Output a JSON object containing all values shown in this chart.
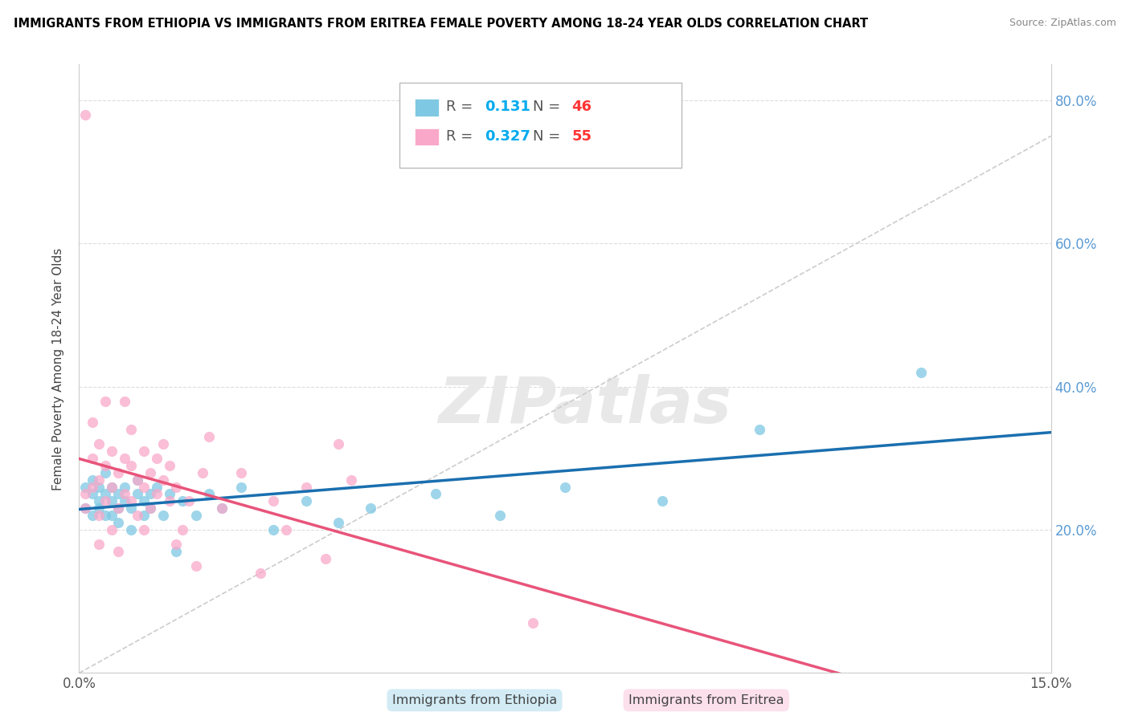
{
  "title": "IMMIGRANTS FROM ETHIOPIA VS IMMIGRANTS FROM ERITREA FEMALE POVERTY AMONG 18-24 YEAR OLDS CORRELATION CHART",
  "source": "Source: ZipAtlas.com",
  "ylabel": "Female Poverty Among 18-24 Year Olds",
  "xlim": [
    0.0,
    0.15
  ],
  "ylim": [
    0.0,
    0.85
  ],
  "ytick_values": [
    0.2,
    0.4,
    0.6,
    0.8
  ],
  "ytick_labels": [
    "20.0%",
    "40.0%",
    "60.0%",
    "80.0%"
  ],
  "R_ethiopia": 0.131,
  "N_ethiopia": 46,
  "R_eritrea": 0.327,
  "N_eritrea": 55,
  "color_ethiopia": "#7ec8e3",
  "color_eritrea": "#f9a8c9",
  "color_ethiopia_line": "#1a6faf",
  "color_eritrea_line": "#e8547a",
  "color_diag": "#cccccc",
  "watermark": "ZIPatlas",
  "ethiopia_x": [
    0.001,
    0.001,
    0.002,
    0.002,
    0.002,
    0.003,
    0.003,
    0.003,
    0.004,
    0.004,
    0.004,
    0.005,
    0.005,
    0.005,
    0.006,
    0.006,
    0.006,
    0.007,
    0.007,
    0.008,
    0.008,
    0.009,
    0.009,
    0.01,
    0.01,
    0.011,
    0.011,
    0.012,
    0.013,
    0.014,
    0.015,
    0.016,
    0.018,
    0.02,
    0.022,
    0.025,
    0.03,
    0.035,
    0.04,
    0.045,
    0.055,
    0.065,
    0.075,
    0.09,
    0.105,
    0.13
  ],
  "ethiopia_y": [
    0.26,
    0.23,
    0.25,
    0.22,
    0.27,
    0.24,
    0.23,
    0.26,
    0.22,
    0.25,
    0.28,
    0.24,
    0.22,
    0.26,
    0.23,
    0.25,
    0.21,
    0.24,
    0.26,
    0.23,
    0.2,
    0.25,
    0.27,
    0.24,
    0.22,
    0.25,
    0.23,
    0.26,
    0.22,
    0.25,
    0.17,
    0.24,
    0.22,
    0.25,
    0.23,
    0.26,
    0.2,
    0.24,
    0.21,
    0.23,
    0.25,
    0.22,
    0.26,
    0.24,
    0.34,
    0.42
  ],
  "eritrea_x": [
    0.001,
    0.001,
    0.002,
    0.002,
    0.002,
    0.003,
    0.003,
    0.003,
    0.003,
    0.004,
    0.004,
    0.004,
    0.005,
    0.005,
    0.005,
    0.006,
    0.006,
    0.006,
    0.007,
    0.007,
    0.007,
    0.008,
    0.008,
    0.008,
    0.009,
    0.009,
    0.01,
    0.01,
    0.01,
    0.011,
    0.011,
    0.012,
    0.012,
    0.013,
    0.013,
    0.014,
    0.014,
    0.015,
    0.015,
    0.016,
    0.017,
    0.018,
    0.019,
    0.02,
    0.022,
    0.025,
    0.028,
    0.03,
    0.032,
    0.035,
    0.038,
    0.04,
    0.042,
    0.07,
    0.001
  ],
  "eritrea_y": [
    0.23,
    0.25,
    0.3,
    0.26,
    0.35,
    0.22,
    0.27,
    0.32,
    0.18,
    0.24,
    0.38,
    0.29,
    0.26,
    0.31,
    0.2,
    0.23,
    0.28,
    0.17,
    0.25,
    0.3,
    0.38,
    0.24,
    0.29,
    0.34,
    0.22,
    0.27,
    0.26,
    0.31,
    0.2,
    0.23,
    0.28,
    0.25,
    0.3,
    0.27,
    0.32,
    0.24,
    0.29,
    0.18,
    0.26,
    0.2,
    0.24,
    0.15,
    0.28,
    0.33,
    0.23,
    0.28,
    0.14,
    0.24,
    0.2,
    0.26,
    0.16,
    0.32,
    0.27,
    0.07,
    0.78
  ],
  "legend_R_color": "#00aaff",
  "legend_N_color": "#ff4444",
  "legend_box_color_eth": "#aaddff",
  "legend_box_color_eri": "#ffaacc"
}
